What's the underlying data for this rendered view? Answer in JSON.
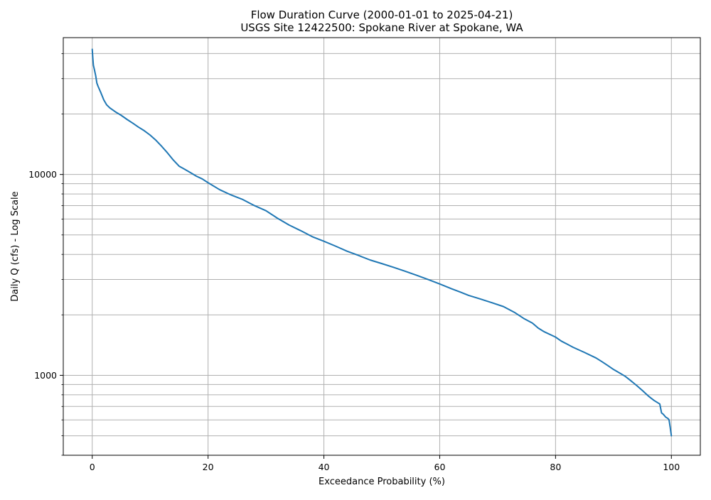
{
  "chart_data": {
    "type": "line",
    "title": "Flow Duration Curve (2000-01-01 to 2025-04-21)",
    "subtitle": "USGS Site 12422500: Spokane River at Spokane, WA",
    "xlabel": "Exceedance Probability (%)",
    "ylabel": "Daily Q (cfs) - Log Scale",
    "xlim": [
      -5,
      105
    ],
    "ylim": [
      400,
      48000
    ],
    "yscale": "log",
    "grid": true,
    "line_color": "#1f77b4",
    "x_ticks": [
      0,
      20,
      40,
      60,
      80,
      100
    ],
    "x_tick_labels": [
      "0",
      "20",
      "40",
      "60",
      "80",
      "100"
    ],
    "y_major_ticks": [
      1000,
      10000
    ],
    "y_major_tick_labels": [
      "1000",
      "10000"
    ],
    "y_minor_ticks": [
      400,
      500,
      600,
      700,
      800,
      900,
      2000,
      3000,
      4000,
      5000,
      6000,
      7000,
      8000,
      9000,
      20000,
      30000,
      40000
    ],
    "series": [
      {
        "x": [
          0,
          0.1,
          0.2,
          0.4,
          0.6,
          0.8,
          1.0,
          1.5,
          2.0,
          2.5,
          3.0,
          4.0,
          5.0,
          6.0,
          7.0,
          8.0,
          9.0,
          10.0,
          11.0,
          12.0,
          13.0,
          14.0,
          15.0,
          16.0,
          17.0,
          18.0,
          19.0,
          20.0,
          22.0,
          24.0,
          26.0,
          28.0,
          30.0,
          32.0,
          34.0,
          36.0,
          38.0,
          40.0,
          42.0,
          44.0,
          46.0,
          48.0,
          50.0,
          52.0,
          54.0,
          56.0,
          58.0,
          60.0,
          62.0,
          63.5,
          65.0,
          67.0,
          69.0,
          71.0,
          73.0,
          74.5,
          76.0,
          77.0,
          78.0,
          80.0,
          81.0,
          82.0,
          83.0,
          85.0,
          87.0,
          88.0,
          89.0,
          90.0,
          91.0,
          92.0,
          93.0,
          94.0,
          95.0,
          96.0,
          97.0,
          98.0,
          98.3,
          98.6,
          99.0,
          99.4,
          99.6,
          99.8,
          100.0
        ],
        "y": [
          42000,
          38000,
          35000,
          33000,
          31000,
          28500,
          27500,
          25500,
          23500,
          22200,
          21500,
          20500,
          19700,
          18800,
          18000,
          17200,
          16500,
          15700,
          14800,
          13800,
          12800,
          11800,
          11000,
          10600,
          10200,
          9800,
          9500,
          9100,
          8400,
          7900,
          7500,
          7000,
          6600,
          6050,
          5600,
          5250,
          4900,
          4650,
          4400,
          4150,
          3950,
          3750,
          3600,
          3450,
          3300,
          3150,
          3000,
          2850,
          2700,
          2600,
          2500,
          2400,
          2300,
          2200,
          2050,
          1920,
          1820,
          1720,
          1650,
          1550,
          1480,
          1430,
          1380,
          1300,
          1220,
          1170,
          1120,
          1070,
          1030,
          990,
          940,
          890,
          840,
          790,
          750,
          720,
          650,
          640,
          620,
          610,
          600,
          550,
          500
        ]
      }
    ]
  }
}
